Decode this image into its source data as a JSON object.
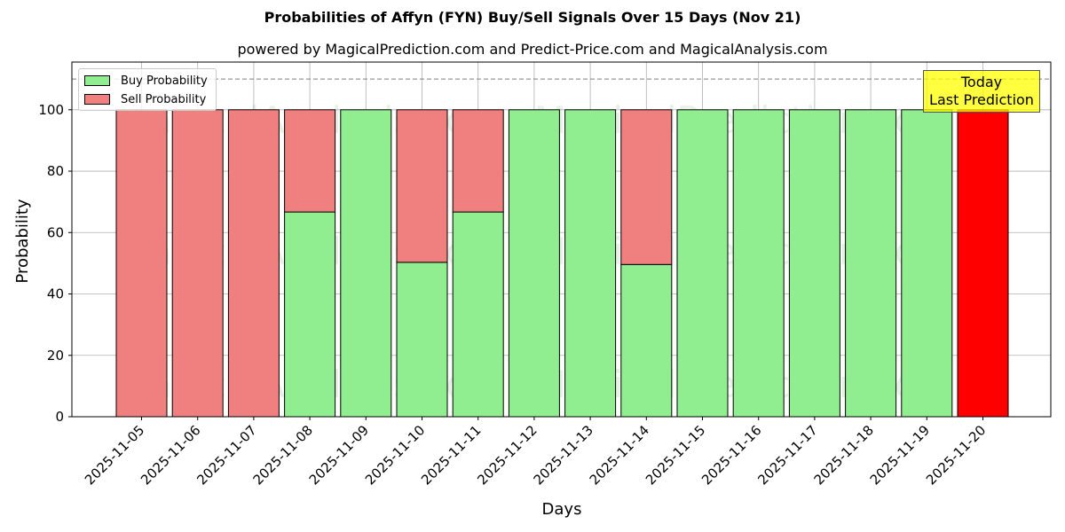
{
  "chart_data": {
    "type": "bar",
    "stacked": true,
    "title": "Probabilities of Affyn (FYN) Buy/Sell Signals Over 15 Days (Nov 21)",
    "subtitle": "powered by MagicalPrediction.com and Predict-Price.com and MagicalAnalysis.com",
    "xlabel": "Days",
    "ylabel": "Probability",
    "ylim": [
      0,
      115
    ],
    "yticks": [
      0,
      20,
      40,
      60,
      80,
      100
    ],
    "grid": true,
    "legend_position": "upper left",
    "categories": [
      "2025-11-05",
      "2025-11-06",
      "2025-11-07",
      "2025-11-08",
      "2025-11-09",
      "2025-11-10",
      "2025-11-11",
      "2025-11-12",
      "2025-11-13",
      "2025-11-14",
      "2025-11-15",
      "2025-11-16",
      "2025-11-17",
      "2025-11-18",
      "2025-11-19",
      "2025-11-20"
    ],
    "series": [
      {
        "name": "Buy Probability",
        "color": "#90ee90",
        "values": [
          0,
          0,
          0,
          66.7,
          100,
          50.3,
          66.7,
          100,
          100,
          49.6,
          100,
          100,
          100,
          100,
          100,
          0
        ]
      },
      {
        "name": "Sell Probability",
        "color": "#f08080",
        "values": [
          100,
          100,
          100,
          33.3,
          0,
          49.7,
          33.3,
          0,
          0,
          50.4,
          0,
          0,
          0,
          0,
          0,
          100
        ]
      }
    ],
    "highlight": {
      "index": 15,
      "color": "#ff0000"
    },
    "reference_line": {
      "y": 110,
      "style": "dashed",
      "color": "#808080"
    },
    "annotation": {
      "line1": "Today",
      "line2": "Last Prediction",
      "background": "#ffff00"
    },
    "watermarks": [
      "MagicalAnalysis.com",
      "MagicalPrediction.com"
    ]
  }
}
